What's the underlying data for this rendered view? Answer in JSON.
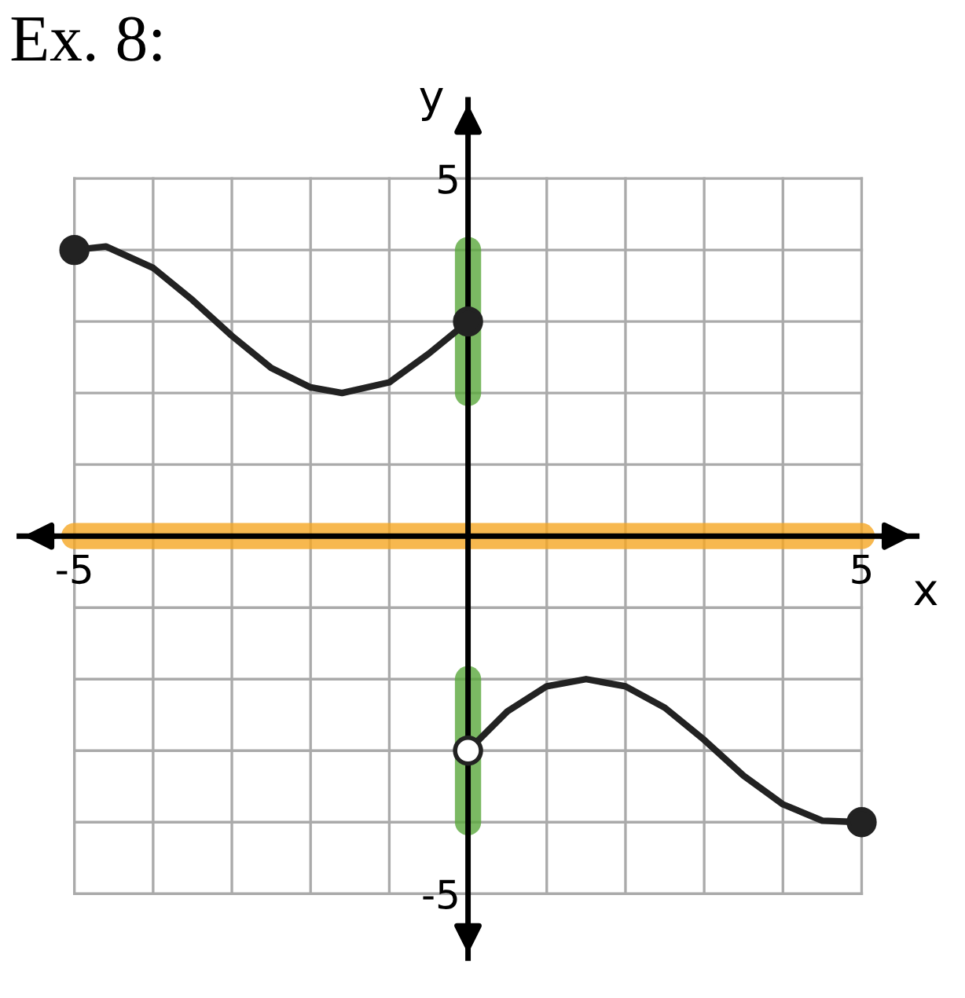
{
  "chart_data": {
    "type": "line",
    "title": "Ex. 8:",
    "xlabel": "x",
    "ylabel": "y",
    "xlim": [
      -5.7,
      5.7
    ],
    "ylim": [
      -5.9,
      6.1
    ],
    "xticks": [
      -5,
      {
        "value": -4,
        "label": null
      },
      {
        "value": -3,
        "label": null
      },
      {
        "value": -2,
        "label": null
      },
      {
        "value": -1,
        "label": null
      },
      {
        "value": 0,
        "label": null
      },
      {
        "value": 1,
        "label": null
      },
      {
        "value": 2,
        "label": null
      },
      {
        "value": 3,
        "label": null
      },
      {
        "value": 4,
        "label": null
      },
      5
    ],
    "yticks": [
      -5,
      {
        "value": -4,
        "label": null
      },
      {
        "value": -3,
        "label": null
      },
      {
        "value": -2,
        "label": null
      },
      {
        "value": -1,
        "label": null
      },
      {
        "value": 0,
        "label": null
      },
      {
        "value": 1,
        "label": null
      },
      {
        "value": 2,
        "label": null
      },
      {
        "value": 3,
        "label": null
      },
      {
        "value": 4,
        "label": null
      },
      5
    ],
    "grid": true,
    "line_style": "solid",
    "series": [
      {
        "type": "line",
        "color": "#222222",
        "x": [
          -5,
          -4.6,
          -4,
          -3.5,
          -3,
          -2.5,
          -2,
          -1.6,
          -1,
          -0.5,
          0
        ],
        "values": [
          4,
          4.05,
          3.75,
          3.3,
          2.8,
          2.35,
          2.08,
          2,
          2.15,
          2.55,
          3
        ]
      },
      {
        "color": "#5aa83c",
        "x": [
          0,
          0
        ],
        "values": [
          2,
          4
        ]
      },
      {
        "color": "#5aa83c",
        "x": [
          0,
          0
        ],
        "values": [
          -4,
          -2
        ]
      },
      {
        "color": "#f5a623",
        "x": [
          -5,
          5
        ],
        "values": [
          0,
          0
        ]
      },
      {
        "type": "line",
        "color": "#222222",
        "x": [
          0,
          0.5,
          1,
          1.5,
          2,
          2.5,
          3,
          3.5,
          4,
          4.5,
          5
        ],
        "values": [
          -3,
          -2.45,
          -2.1,
          -2,
          -2.1,
          -2.4,
          -2.85,
          -3.35,
          -3.75,
          -3.98,
          -4
        ]
      },
      {
        "type": "scatter",
        "color": "#222222",
        "marker": "circle",
        "x": [
          -5,
          0,
          5
        ],
        "values": [
          4,
          3,
          -4
        ]
      },
      {
        "type": "scatter",
        "color": "#ffffff",
        "marker": "circle",
        "x": [
          0
        ],
        "values": [
          -3
        ]
      }
    ]
  }
}
